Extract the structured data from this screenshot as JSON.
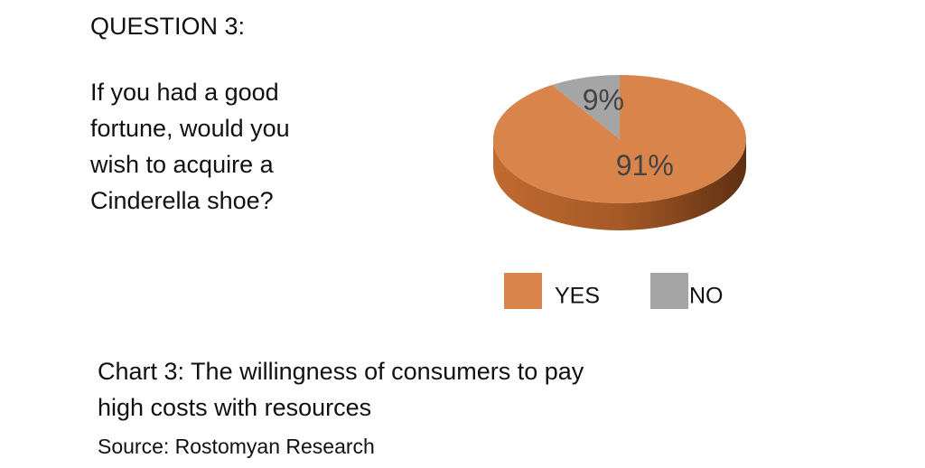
{
  "header": {
    "title": "QUESTION 3:"
  },
  "question": [
    "If you had a good",
    "fortune, would you",
    "wish to acquire a",
    "Cinderella shoe?"
  ],
  "chart_data": {
    "type": "pie",
    "categories": [
      "YES",
      "NO"
    ],
    "values": [
      91,
      9
    ],
    "value_labels": [
      "91%",
      "9%"
    ],
    "colors": [
      "#d9844a",
      "#a5a5a5"
    ],
    "legend": "bottom"
  },
  "caption": [
    "Chart 3: The willingness of consumers to pay",
    "high costs with resources"
  ],
  "source": "Source: Rostomyan Research"
}
